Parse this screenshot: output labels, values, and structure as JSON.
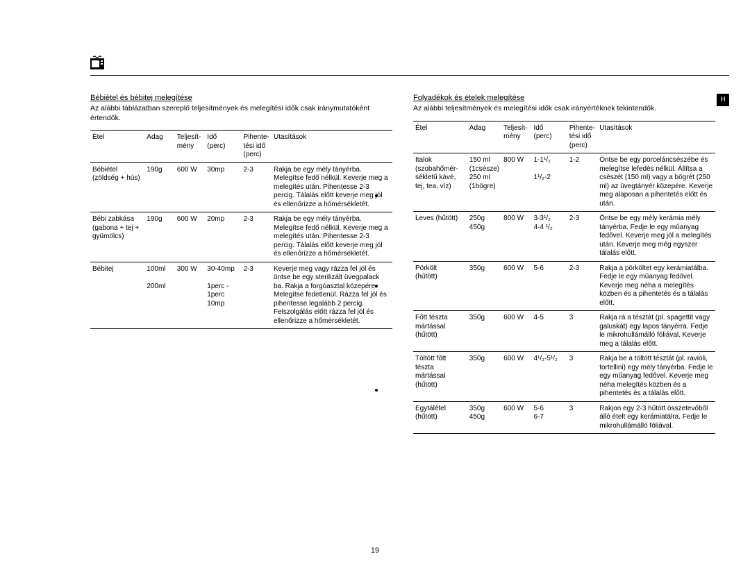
{
  "page_number": "19",
  "badge": "H",
  "left": {
    "title": "Bébiétel és bébitej melegítése",
    "intro": "Az alábbi táblázatban szereplő teljesítmények és melegítési idők csak iránymutatóként értendők.",
    "headers": {
      "etel": "Étel",
      "adag": "Adag",
      "telj1": "Teljesít-",
      "telj2": "mény",
      "ido1": "Idő",
      "ido2": "(perc)",
      "pih1": "Pihente-",
      "pih2": "tési idő",
      "pih3": "(perc)",
      "utas": "Utasítások"
    },
    "rows": [
      {
        "etel": "Bébiétel\n(zöldség + hús)",
        "adag": "190g",
        "telj": "600 W",
        "ido": "30mp",
        "pih": "2-3",
        "utas": "Rakja be egy mély tányérba. Melegítse fedő nélkül. Keverje meg a melegítés után. Pihentesse 2-3 percig. Tálalás előtt keverje meg jól és ellenőrizze a hőmérsékletét."
      },
      {
        "etel": "Bébi zabkása\n(gabona + tej + gyümölcs)",
        "adag": "190g",
        "telj": "600 W",
        "ido": "20mp",
        "pih": "2-3",
        "utas": "Rakja be egy mély tányérba. Melegítse fedő nélkül. Keverje meg a melegítés után. Pihentesse 2-3 percig. Tálalás előtt keverje meg jól és ellenőrizze a hőmérsékletét."
      },
      {
        "etel": "Bébitej",
        "adag": "100ml\n\n200ml",
        "telj": "300 W",
        "ido": "30-40mp\n\n1perc - 1perc 10mp",
        "pih": "2-3",
        "utas": "Keverje meg vagy rázza fel jól és öntse be egy sterilizált üvegpalack ba. Rakja a forgóasztal közepére. Melegítse fedetlenül. Rázza fel jól és pihentesse legalább 2 percig. Felszolgálás előtt rázza fel jól és ellenőrizze a hőmérsékletét."
      }
    ]
  },
  "right": {
    "title": "Folyadékok és ételek melegítése",
    "intro": "Az alábbi teljesítmények és melegítési idők csak irányértéknek tekintendők.",
    "headers": {
      "etel": "Étel",
      "adag": "Adag",
      "telj1": "Teljesít-",
      "telj2": "mény",
      "ido1": "Idő",
      "ido2": "(perc)",
      "pih1": "Pihente-",
      "pih2": "tési idő",
      "pih3": "(perc)",
      "utas": "Utasítások"
    },
    "rows": [
      {
        "etel": "Italok\n(szobahőmér-\nsékletű kávé, tej, tea, víz)",
        "adag": "150 ml\n(1csésze)\n250 ml\n(1bögre)",
        "telj": "800 W",
        "ido": "1-1¹/₂\n\n1¹/₂-2",
        "pih": "1-2",
        "utas": "Öntse be egy porceláncsészébe és melegítse lefedés nélkül. Állítsa a csészét (150 ml) vagy a bögrét (250 ml) az üvegtányér közepére. Keverje meg alaposan a pihentetés előtt és után."
      },
      {
        "etel": "Leves (hűtött)",
        "adag": "250g\n450g",
        "telj": "800 W",
        "ido": "3-3¹/₂\n4-4 ¹/₂",
        "pih": "2-3",
        "utas": "Öntse be egy mély kerámia mély tányérba. Fedje le egy műanyag fedővel. Keverje meg jól a melegítés után. Keverje meg még egyszer tálalás előtt."
      },
      {
        "etel": "Pörkölt\n(hűtött)",
        "adag": "350g",
        "telj": "600 W",
        "ido": "5-6",
        "pih": "2-3",
        "utas": "Rakja a pörköltet egy kerámiatálba. Fedje le egy műanyag fedővel. Keverje meg néha a melegítés közben és a pihentetés és a tálalás előtt."
      },
      {
        "etel": "Főtt tészta mártással\n(hűtött)",
        "adag": "350g",
        "telj": "600 W",
        "ido": "4-5",
        "pih": "3",
        "utas": "Rakja rá a tésztát (pl. spagettit vagy galuskát) egy lapos tányérra. Fedje le mikrohullámálló fóliával. Keverje meg a tálalás előtt."
      },
      {
        "etel": "Töltött főtt tészta mártással\n(hűtött)",
        "adag": "350g",
        "telj": "600 W",
        "ido": "4¹/₂-5¹/₂",
        "pih": "3",
        "utas": "Rakja be a töltött tésztát (pl. ravioli, tortellini) egy mély tányérba. Fedje le egy műanyag fedővel. Keverje meg néha melegítés közben és a pihentetés és a tálalás előtt."
      },
      {
        "etel": "Egytálétel\n(hűtött)",
        "adag": "350g\n450g",
        "telj": "600 W",
        "ido": "5-6\n6-7",
        "pih": "3",
        "utas": "Rakjon egy 2-3 hűtött összetevőből álló ételt egy kerámiatálra. Fedje le mikrohullámálló fóliával."
      }
    ]
  }
}
